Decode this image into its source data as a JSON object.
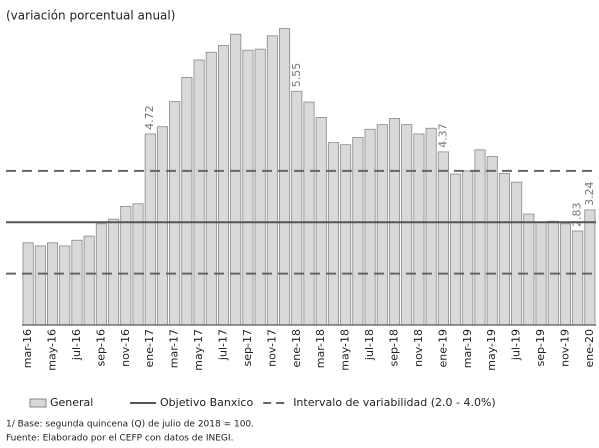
{
  "chart_data": {
    "type": "bar",
    "title": "(variación porcentual anual)",
    "categories": [
      "mar-16",
      null,
      "may-16",
      null,
      "jul-16",
      null,
      "sep-16",
      null,
      "nov-16",
      null,
      "ene-17",
      null,
      "mar-17",
      null,
      "may-17",
      null,
      "jul-17",
      null,
      "sep-17",
      null,
      "nov-17",
      null,
      "ene-18",
      null,
      "mar-18",
      null,
      "may-18",
      null,
      "jul-18",
      null,
      "sep-18",
      null,
      "nov-18",
      null,
      "ene-19",
      null,
      "mar-19",
      null,
      "may-19",
      null,
      "jul-19",
      null,
      "sep-19",
      null,
      "nov-19",
      null,
      "ene-20"
    ],
    "series": [
      {
        "name": "General",
        "color": "#d9d9d9",
        "values": [
          2.6,
          2.54,
          2.6,
          2.54,
          2.65,
          2.73,
          2.97,
          3.06,
          3.31,
          3.36,
          4.72,
          4.86,
          5.35,
          5.82,
          6.16,
          6.31,
          6.44,
          6.66,
          6.35,
          6.37,
          6.63,
          6.77,
          5.55,
          5.34,
          5.04,
          4.55,
          4.51,
          4.65,
          4.81,
          4.9,
          5.02,
          4.9,
          4.72,
          4.83,
          4.37,
          3.94,
          4.0,
          4.41,
          4.28,
          3.95,
          3.78,
          3.16,
          3.0,
          3.02,
          2.97,
          2.83,
          3.24
        ],
        "value_labels": [
          null,
          null,
          null,
          null,
          null,
          null,
          null,
          null,
          null,
          null,
          "4.72",
          null,
          null,
          null,
          null,
          null,
          null,
          null,
          null,
          null,
          null,
          null,
          "5.55",
          null,
          null,
          null,
          null,
          null,
          null,
          null,
          null,
          null,
          null,
          null,
          "4.37",
          null,
          null,
          null,
          null,
          null,
          null,
          null,
          null,
          null,
          null,
          "2.83",
          "3.24"
        ]
      }
    ],
    "reference_lines": [
      {
        "name": "Objetivo Banxico",
        "value": 3.0,
        "style": "solid",
        "color": "#555555"
      },
      {
        "name": "Intervalo de variabilidad (2.0 - 4.0%)",
        "values": [
          2.0,
          4.0
        ],
        "style": "dashed",
        "color": "#666666"
      }
    ],
    "ylim": [
      1.0,
      6.84
    ],
    "notes": [
      "1/ Base: segunda quincena (Q) de julio de 2018 = 100.",
      "Fuente: Elaborado por el CEFP con datos de INEGI."
    ]
  }
}
